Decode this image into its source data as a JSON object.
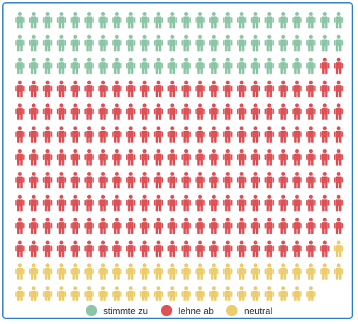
{
  "chart_data": {
    "type": "waffle",
    "units_per_row": 24,
    "series": [
      {
        "name": "stimmte zu",
        "count": 70,
        "color": "#8dc6a6"
      },
      {
        "name": "lehne ab",
        "count": 193,
        "color": "#dd5257"
      },
      {
        "name": "neutral",
        "count": 47,
        "color": "#eccc6b"
      }
    ],
    "legend_position": "bottom"
  }
}
